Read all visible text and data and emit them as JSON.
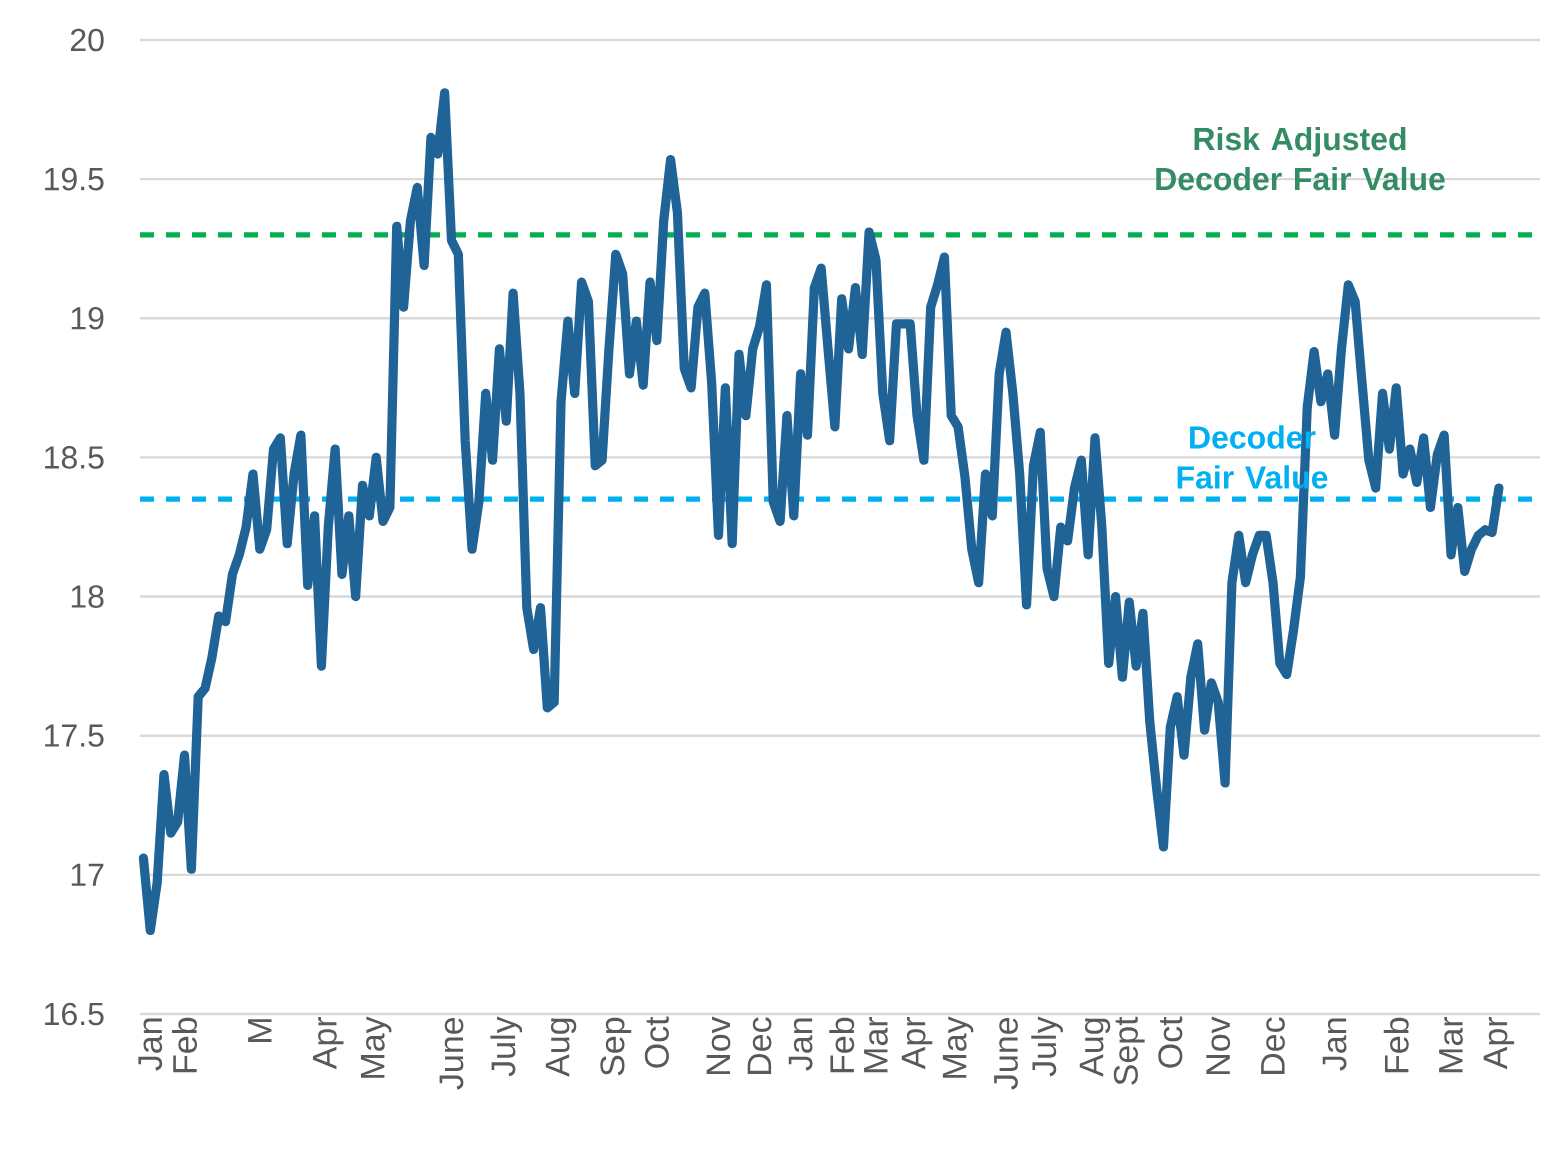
{
  "chart_data": {
    "type": "line",
    "categories": [
      null,
      "Jan",
      null,
      null,
      null,
      null,
      "Feb",
      null,
      null,
      null,
      null,
      null,
      null,
      null,
      null,
      null,
      null,
      "M",
      null,
      null,
      null,
      null,
      null,
      null,
      null,
      null,
      null,
      "Apr",
      null,
      null,
      null,
      null,
      null,
      null,
      "May",
      null,
      null,
      null,
      null,
      null,
      null,
      null,
      null,
      null,
      null,
      "June",
      null,
      null,
      null,
      null,
      null,
      null,
      null,
      "July",
      null,
      null,
      null,
      null,
      null,
      null,
      null,
      "Aug",
      null,
      null,
      null,
      null,
      null,
      null,
      null,
      "Sep",
      null,
      null,
      null,
      null,
      null,
      "Oct",
      null,
      null,
      null,
      null,
      null,
      null,
      null,
      null,
      "Nov",
      null,
      null,
      null,
      null,
      null,
      "Dec",
      null,
      null,
      null,
      null,
      null,
      "Jan",
      null,
      null,
      null,
      null,
      null,
      "Feb",
      null,
      null,
      null,
      null,
      "Mar",
      null,
      null,
      null,
      null,
      null,
      "Apr",
      null,
      null,
      null,
      null,
      null,
      "May",
      null,
      null,
      null,
      null,
      null,
      null,
      "June",
      null,
      null,
      null,
      null,
      null,
      "July",
      null,
      null,
      null,
      null,
      null,
      null,
      "Aug",
      null,
      null,
      null,
      null,
      "Sept",
      null,
      null,
      null,
      null,
      null,
      "Oct",
      null,
      null,
      null,
      null,
      null,
      null,
      "Nov",
      null,
      null,
      null,
      null,
      null,
      null,
      null,
      "Dec",
      null,
      null,
      null,
      null,
      null,
      null,
      null,
      null,
      "Jan",
      null,
      null,
      null,
      null,
      null,
      null,
      null,
      null,
      "Feb",
      null,
      null,
      null,
      null,
      null,
      null,
      null,
      "Mar",
      null,
      null,
      null,
      null,
      null,
      null,
      "Apr"
    ],
    "series": [
      {
        "color": "#1f6397",
        "values": [
          17.06,
          16.8,
          16.97,
          17.36,
          17.15,
          17.19,
          17.43,
          17.02,
          17.64,
          17.67,
          17.78,
          17.93,
          17.91,
          18.08,
          18.15,
          18.25,
          18.44,
          18.17,
          18.24,
          18.53,
          18.57,
          18.19,
          18.44,
          18.58,
          18.04,
          18.29,
          17.75,
          18.25,
          18.53,
          18.08,
          18.29,
          18.0,
          18.4,
          18.29,
          18.5,
          18.27,
          18.32,
          19.33,
          19.04,
          19.35,
          19.47,
          19.19,
          19.65,
          19.59,
          19.81,
          19.28,
          19.23,
          18.56,
          18.17,
          18.34,
          18.73,
          18.49,
          18.89,
          18.63,
          19.09,
          18.73,
          17.96,
          17.81,
          17.96,
          17.6,
          17.62,
          18.7,
          18.99,
          18.73,
          19.13,
          19.06,
          18.47,
          18.49,
          18.89,
          19.23,
          19.16,
          18.8,
          18.99,
          18.76,
          19.13,
          18.92,
          19.35,
          19.57,
          19.38,
          18.82,
          18.75,
          19.04,
          19.09,
          18.77,
          18.22,
          18.75,
          18.19,
          18.87,
          18.65,
          18.89,
          18.97,
          19.12,
          18.34,
          18.27,
          18.65,
          18.29,
          18.8,
          18.58,
          19.11,
          19.18,
          18.89,
          18.61,
          19.07,
          18.89,
          19.11,
          18.87,
          19.31,
          19.21,
          18.73,
          18.56,
          18.98,
          18.98,
          18.98,
          18.65,
          18.49,
          19.04,
          19.12,
          19.22,
          18.65,
          18.61,
          18.43,
          18.17,
          18.05,
          18.44,
          18.29,
          18.8,
          18.95,
          18.73,
          18.44,
          17.97,
          18.47,
          18.59,
          18.1,
          18.0,
          18.25,
          18.2,
          18.39,
          18.49,
          18.15,
          18.57,
          18.25,
          17.76,
          18.0,
          17.71,
          17.98,
          17.75,
          17.94,
          17.55,
          17.31,
          17.1,
          17.53,
          17.64,
          17.43,
          17.71,
          17.83,
          17.52,
          17.69,
          17.62,
          17.33,
          18.05,
          18.22,
          18.05,
          18.15,
          18.22,
          18.22,
          18.05,
          17.76,
          17.72,
          17.88,
          18.07,
          18.68,
          18.88,
          18.7,
          18.8,
          18.58,
          18.89,
          19.12,
          19.06,
          18.77,
          18.49,
          18.39,
          18.73,
          18.53,
          18.75,
          18.44,
          18.53,
          18.41,
          18.57,
          18.32,
          18.51,
          18.58,
          18.15,
          18.32,
          18.09,
          18.17,
          18.22,
          18.24,
          18.23,
          18.39
        ]
      }
    ],
    "ylim": [
      16.5,
      20
    ],
    "yticks": [
      16.5,
      17,
      17.5,
      18,
      18.5,
      19,
      19.5,
      20
    ],
    "grid": "y",
    "ref_lines": [
      {
        "axis": "y",
        "value": 19.3,
        "label": "Risk Adjusted Decoder Fair Value",
        "color": "#00b050",
        "line_style": "dashed"
      },
      {
        "axis": "y",
        "value": 18.35,
        "label": "Decoder Fair Value",
        "color": "#00b0f0",
        "line_style": "dashed"
      }
    ]
  }
}
